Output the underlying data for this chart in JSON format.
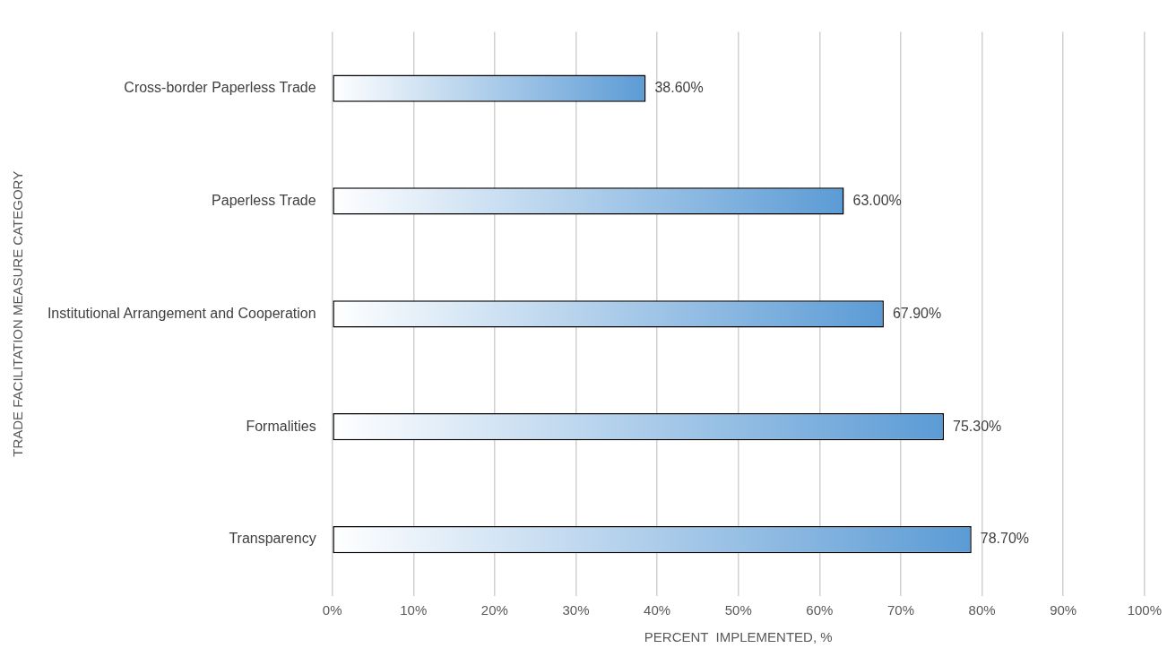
{
  "chart_data": {
    "type": "bar",
    "orientation": "horizontal",
    "xlabel": "PERCENT  IMPLEMENTED, %",
    "ylabel": "TRADE FACILITATION MEASURE CATEGORY",
    "categories": [
      "Cross-border Paperless Trade",
      "Paperless Trade",
      "Institutional Arrangement and Cooperation",
      "Formalities",
      "Transparency"
    ],
    "values": [
      38.6,
      63.0,
      67.9,
      75.3,
      78.7
    ],
    "value_labels": [
      "38.60%",
      "63.00%",
      "67.90%",
      "75.30%",
      "78.70%"
    ],
    "color": "#5b9bd5",
    "xlim": [
      0,
      100
    ],
    "xticks": [
      {
        "value": 0,
        "label": "0%"
      },
      {
        "value": 10,
        "label": "10%"
      },
      {
        "value": 20,
        "label": "20%"
      },
      {
        "value": 30,
        "label": "30%"
      },
      {
        "value": 40,
        "label": "40%"
      },
      {
        "value": 50,
        "label": "50%"
      },
      {
        "value": 60,
        "label": "60%"
      },
      {
        "value": 70,
        "label": "70%"
      },
      {
        "value": 80,
        "label": "80%"
      },
      {
        "value": 90,
        "label": "90%"
      },
      {
        "value": 100,
        "label": "100%"
      }
    ],
    "grid": "x",
    "legend": false
  }
}
